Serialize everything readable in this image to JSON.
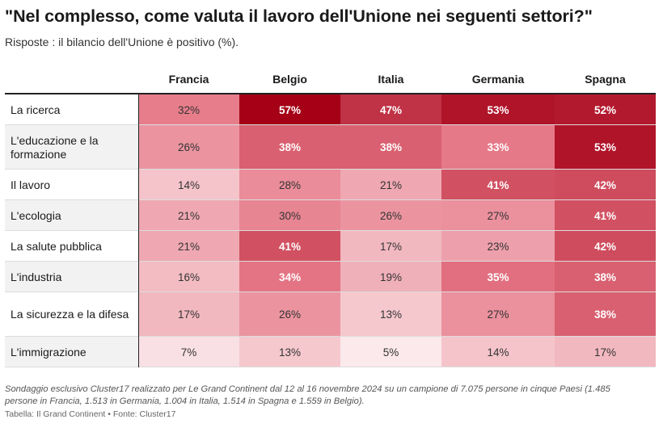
{
  "title": "\"Nel complesso, come valuta il lavoro dell'Unione nei seguenti settori?\"",
  "subtitle": "Risposte : il bilancio dell'Unione è positivo (%).",
  "note": "Sondaggio esclusivo Cluster17 realizzato per Le Grand Continent dal 12 al 16 novembre 2024 su un campione di 7.075 persone in cinque Paesi (1.485 persone in Francia, 1.513 in Germania, 1.004 in Italia, 1.514 in Spagna e 1.559 in Belgio).",
  "credit": "Tabella: Il Grand Continent • Fonte: Cluster17",
  "colors": {
    "low": "#ffffff",
    "high": "#a50016",
    "text_dark": "#333333",
    "text_light": "#ffffff"
  },
  "chart_data": {
    "type": "heatmap",
    "title": "\"Nel complesso, come valuta il lavoro dell'Unione nei seguenti settori?\"",
    "subtitle": "Risposte : il bilancio dell'Unione è positivo (%).",
    "unit": "%",
    "columns": [
      "Francia",
      "Belgio",
      "Italia",
      "Germania",
      "Spagna"
    ],
    "rows": [
      {
        "label": "La ricerca",
        "values": [
          32,
          57,
          47,
          53,
          52
        ],
        "display": [
          "32%",
          "57%",
          "47%",
          "53%",
          "52%"
        ]
      },
      {
        "label": "L'educazione e la formazione",
        "values": [
          26,
          38,
          38,
          33,
          53
        ],
        "display": [
          "26%",
          "38%",
          "38%",
          "33%",
          "53%"
        ]
      },
      {
        "label": "Il lavoro",
        "values": [
          14,
          28,
          21,
          41,
          42
        ],
        "display": [
          "14%",
          "28%",
          "21%",
          "41%",
          "42%"
        ]
      },
      {
        "label": "L'ecologia",
        "values": [
          21,
          30,
          26,
          27,
          41
        ],
        "display": [
          "21%",
          "30%",
          "26%",
          "27%",
          "41%"
        ]
      },
      {
        "label": "La salute pubblica",
        "values": [
          21,
          41,
          17,
          23,
          42
        ],
        "display": [
          "21%",
          "41%",
          "17%",
          "23%",
          "42%"
        ]
      },
      {
        "label": "L'industria",
        "values": [
          16,
          34,
          19,
          35,
          38
        ],
        "display": [
          "16%",
          "34%",
          "19%",
          "35%",
          "38%"
        ]
      },
      {
        "label": "La sicurezza e la difesa",
        "values": [
          17,
          26,
          13,
          27,
          38
        ],
        "display": [
          "17%",
          "26%",
          "13%",
          "27%",
          "38%"
        ]
      },
      {
        "label": "L'immigrazione",
        "values": [
          7,
          13,
          5,
          14,
          17
        ],
        "display": [
          "7%",
          "13%",
          "5%",
          "14%",
          "17%"
        ]
      }
    ],
    "color_range": [
      0,
      57
    ]
  }
}
